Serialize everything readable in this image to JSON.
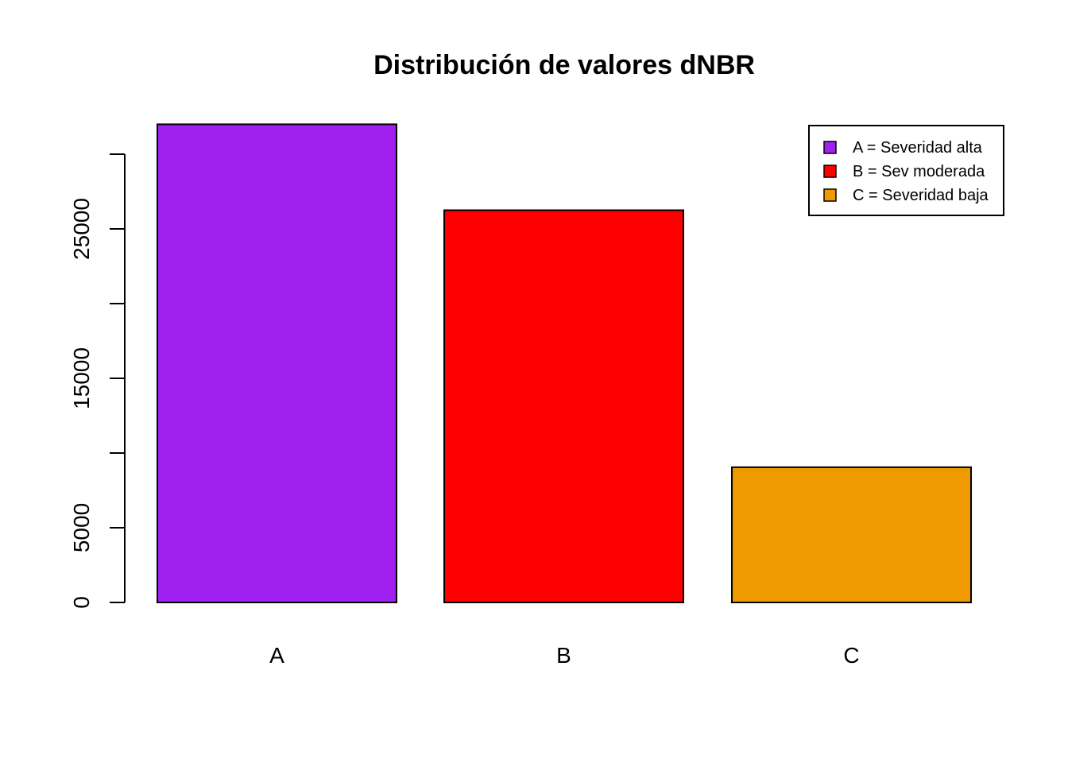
{
  "chart_data": {
    "type": "bar",
    "title": "Distribución de valores dNBR",
    "xlabel": "",
    "ylabel": "",
    "categories": [
      "A",
      "B",
      "C"
    ],
    "values": [
      32000,
      26250,
      9050
    ],
    "colors": [
      "#A020F0",
      "#FF0000",
      "#EE9A00"
    ],
    "ylim": [
      0,
      32000
    ],
    "yticks": [
      0,
      5000,
      10000,
      15000,
      20000,
      25000,
      30000
    ],
    "ytick_labels": [
      "0",
      "5000",
      "",
      "15000",
      "",
      "25000",
      ""
    ],
    "grid": false,
    "legend": {
      "position": "top-right",
      "entries": [
        {
          "label": "A = Severidad alta",
          "color": "#A020F0"
        },
        {
          "label": "B = Sev moderada",
          "color": "#FF0000"
        },
        {
          "label": "C = Severidad baja",
          "color": "#EE9A00"
        }
      ]
    }
  }
}
